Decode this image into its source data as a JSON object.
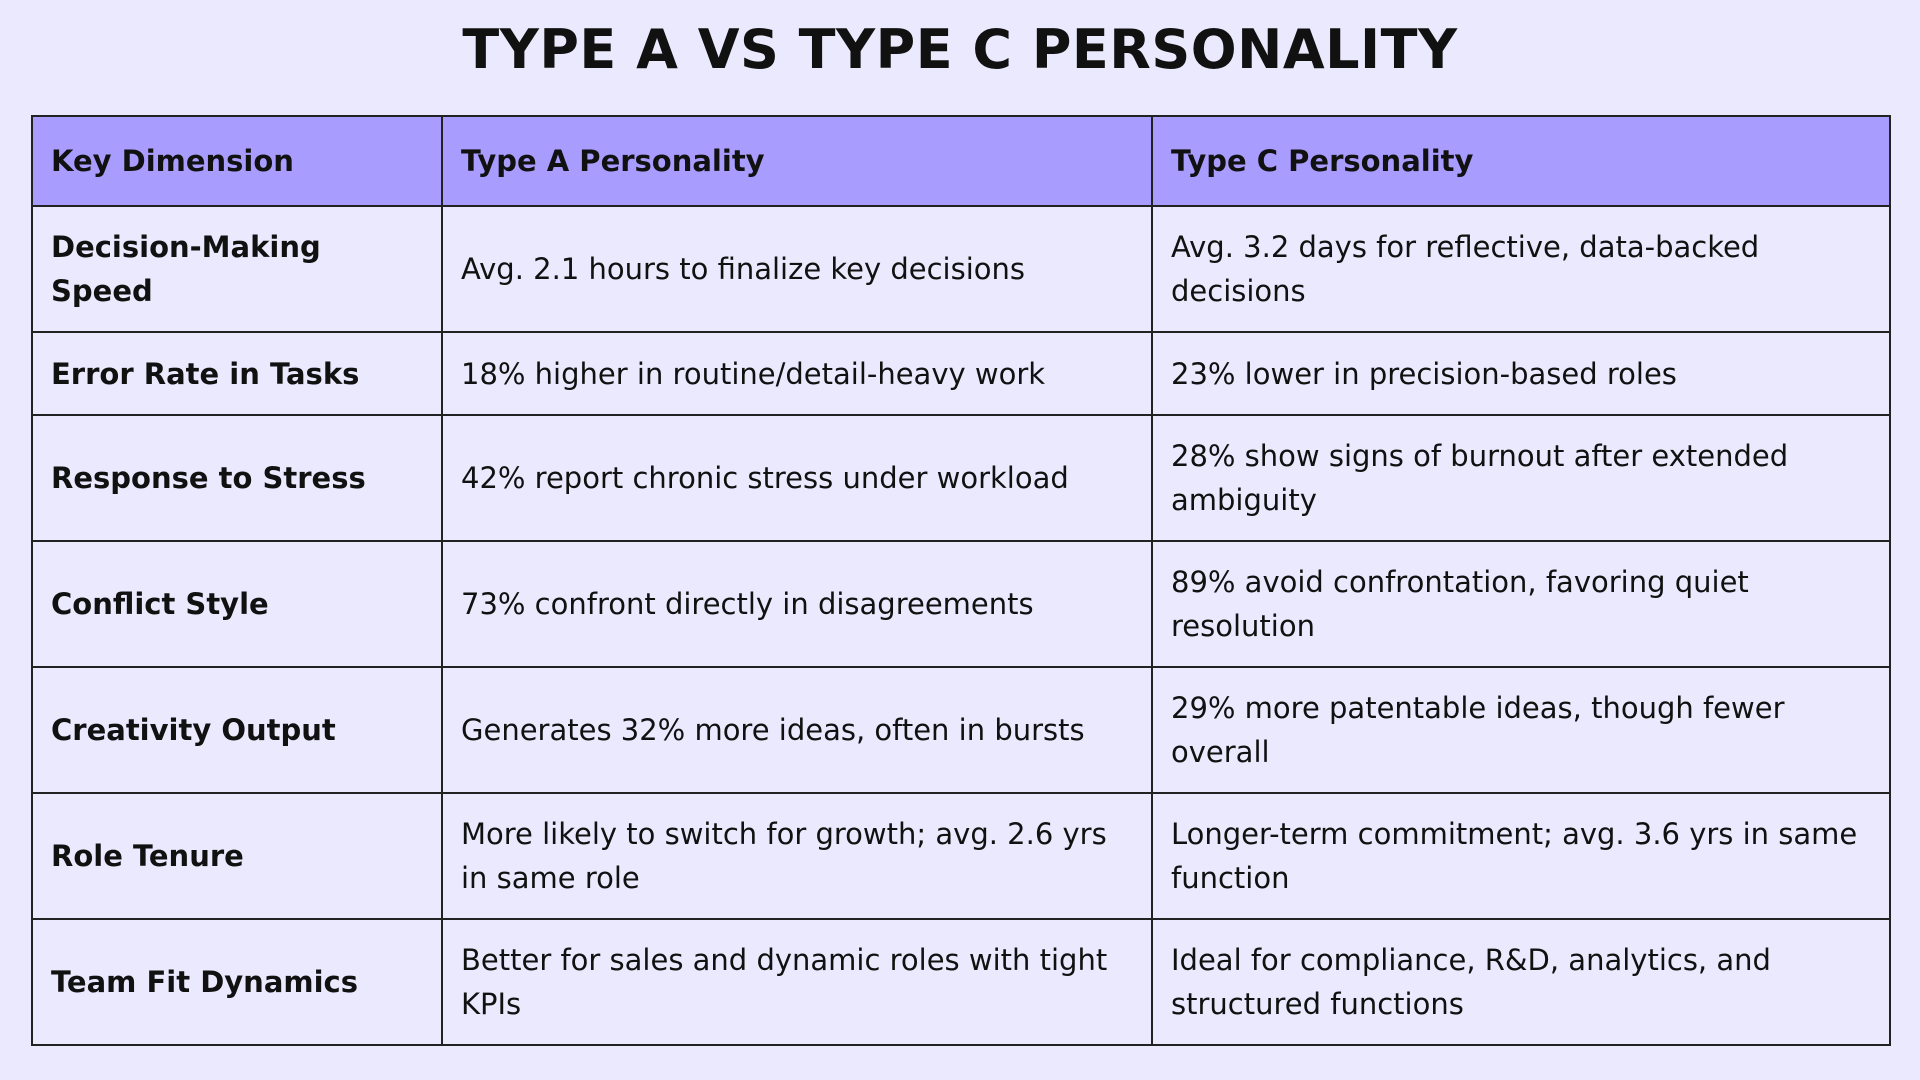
{
  "header": {
    "title": "TYPE A VS TYPE C PERSONALITY"
  },
  "table": {
    "columns": [
      "Key Dimension",
      "Type A Personality",
      "Type C Personality"
    ],
    "rows": [
      [
        "Decision-Making Speed",
        "Avg. 2.1 hours to finalize key decisions",
        "Avg. 3.2 days for reflective, data-backed decisions"
      ],
      [
        "Error Rate in Tasks",
        "18% higher in routine/detail-heavy work",
        "23% lower in precision-based roles"
      ],
      [
        "Response to Stress",
        "42% report chronic stress under workload",
        "28% show signs of burnout after extended ambiguity"
      ],
      [
        "Conflict Style",
        "73% confront directly in disagreements",
        "89% avoid confrontation, favoring quiet resolution"
      ],
      [
        "Creativity Output",
        "Generates 32% more ideas, often in bursts",
        "29% more patentable ideas, though fewer overall"
      ],
      [
        "Role Tenure",
        "More likely to switch for growth; avg. 2.6 yrs in same role",
        "Longer-term commitment; avg. 3.6 yrs in same function"
      ],
      [
        "Team Fit Dynamics",
        "Better for sales and dynamic roles with tight KPIs",
        "Ideal for compliance, R&D, analytics, and structured functions"
      ]
    ]
  }
}
